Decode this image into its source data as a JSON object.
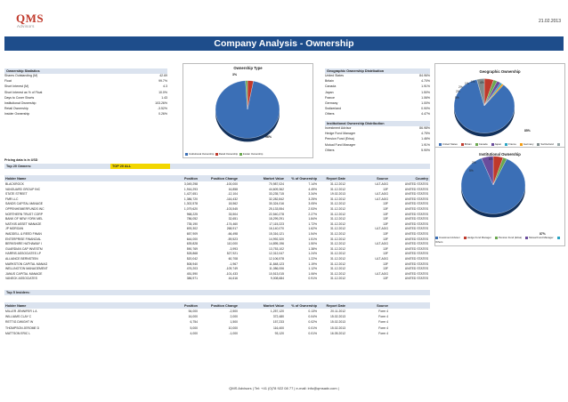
{
  "brand": {
    "logo": "QMS",
    "sub": "Advisors"
  },
  "date": "21.02.2013",
  "title": "Company Analysis - Ownership",
  "stats": {
    "header": "Ownership Statistics",
    "rows": [
      {
        "label": "Shares Outstanding (M)",
        "value": "42.69"
      },
      {
        "label": "Float",
        "value": "99.7%"
      },
      {
        "label": "Short Interest (M)",
        "value": "4.3"
      },
      {
        "label": "Short Interest as % of Float",
        "value": "10.0%"
      },
      {
        "label": "Days to Cover Shorts",
        "value": "1.43"
      },
      {
        "label": "Institutional Ownership",
        "value": "103.26%"
      },
      {
        "label": "Retail Ownership",
        "value": "-3.52%"
      },
      {
        "label": "Insider Ownership",
        "value": "0.26%"
      }
    ]
  },
  "ownership_type": {
    "title": "Ownership Type",
    "labels": [
      "3%",
      "96%"
    ],
    "legend": [
      "Institutional Ownership",
      "Retail Ownership",
      "Insider Ownership"
    ]
  },
  "geo": {
    "header": "Geographic Ownership Distribution",
    "rows": [
      {
        "label": "United States",
        "value": "84.96%"
      },
      {
        "label": "Britain",
        "value": "4.70%"
      },
      {
        "label": "Canada",
        "value": "1.91%"
      },
      {
        "label": "Japan",
        "value": "1.50%"
      },
      {
        "label": "France",
        "value": "1.06%"
      },
      {
        "label": "Germany",
        "value": "1.00%"
      },
      {
        "label": "Switzerland",
        "value": "0.90%"
      },
      {
        "label": "Others",
        "value": "4.47%"
      }
    ]
  },
  "geo_chart": {
    "title": "Geographic Ownership",
    "labels": [
      "85%",
      "5%",
      "2%",
      "2%",
      "1%",
      "1%",
      "4%"
    ],
    "legend": [
      "United States",
      "Britain",
      "Canada",
      "Japan",
      "France",
      "Germany",
      "Switzerland",
      "Others"
    ]
  },
  "inst": {
    "header": "Institutional Ownership Distribution",
    "rows": [
      {
        "label": "Investment Advisor",
        "value": "86.98%"
      },
      {
        "label": "Hedge Fund Manager",
        "value": "4.75%"
      },
      {
        "label": "Pension Fund (Erisa)",
        "value": "1.46%"
      },
      {
        "label": "Mutual Fund Manager",
        "value": "1.91%"
      },
      {
        "label": "Others",
        "value": "5.90%"
      }
    ]
  },
  "inst_chart": {
    "title": "Institutional Ownership",
    "labels": [
      "87%",
      "5%",
      "2%",
      "6%"
    ],
    "legend": [
      "Investment Advisor",
      "Hedge Fund Manager",
      "Pension Fund (Erisa)",
      "Mutual Fund Manager",
      "Others"
    ]
  },
  "pricing_note": "Pricing data is in USD",
  "top_owners": {
    "label": "Top 20 Owners:",
    "selector": "TOP 20 ALL"
  },
  "holders_table": {
    "columns": [
      "Holder Name",
      "Position",
      "Position Change",
      "Market Value",
      "% of Ownership",
      "Report Date",
      "Source",
      "Country"
    ],
    "rows": [
      [
        "BLACKROCK",
        "3,049,298",
        "-100,000",
        "70,987,024",
        "7.14%",
        "31.12.2012",
        "ULT-AGG",
        "UNITED STATES"
      ],
      [
        "VANGUARD GROUP INC",
        "1,916,293",
        "16,858",
        "44,609,362",
        "4.49%",
        "31.12.2012",
        "13F",
        "UNITED STATES"
      ],
      [
        "STATE STREET",
        "1,427,651",
        "-12,104",
        "33,235,715",
        "3.34%",
        "19.02.2013",
        "ULT-AGG",
        "UNITED STATES"
      ],
      [
        "FMR LLC",
        "1,386,720",
        "-116,432",
        "32,282,842",
        "3.25%",
        "31.12.2012",
        "ULT-AGG",
        "UNITED STATES"
      ],
      [
        "SANDS CAPITAL MANAGE",
        "1,302,578",
        "18,562",
        "30,324,016",
        "3.05%",
        "31.12.2012",
        "13F",
        "UNITED STATES"
      ],
      [
        "OPPENHEIMERFUNDS INC",
        "1,079,620",
        "-103,545",
        "25,133,554",
        "2.53%",
        "31.12.2012",
        "13F",
        "UNITED STATES"
      ],
      [
        "NORTHERN TRUST CORP",
        "968,225",
        "33,504",
        "22,540,278",
        "2.27%",
        "31.12.2012",
        "13F",
        "UNITED STATES"
      ],
      [
        "BANK OF NEW YORK MEL",
        "786,052",
        "32,651",
        "18,299,291",
        "1.84%",
        "31.12.2012",
        "13F",
        "UNITED STATES"
      ],
      [
        "NATIXIS ASSET MANAGE",
        "735,190",
        "-174,460",
        "17,115,223",
        "1.72%",
        "31.12.2012",
        "13F",
        "UNITED STATES"
      ],
      [
        "JP MORGAN",
        "693,302",
        "268,917",
        "16,140,070",
        "1.62%",
        "31.12.2012",
        "ULT-AGG",
        "UNITED STATES"
      ],
      [
        "WADDELL & REED FINAN",
        "657,909",
        "-66,498",
        "15,316,121",
        "1.54%",
        "31.12.2012",
        "13F",
        "UNITED STATES"
      ],
      [
        "ENTERPRISE FINANCIAL",
        "644,000",
        "-59,523",
        "14,992,320",
        "1.51%",
        "31.12.2012",
        "13F",
        "UNITED STATES"
      ],
      [
        "BERKSHIRE HATHAWAY I",
        "639,828",
        "110,000",
        "14,895,196",
        "1.50%",
        "31.12.2012",
        "ULT-AGG",
        "UNITED STATES"
      ],
      [
        "GUARDIAN CAP INVESTM",
        "590,769",
        "-3,993",
        "13,753,102",
        "1.38%",
        "31.12.2012",
        "13F",
        "UNITED STATES"
      ],
      [
        "HARRIS ASSOCIATES LP",
        "528,868",
        "527,921",
        "12,312,047",
        "1.24%",
        "31.12.2012",
        "13F",
        "UNITED STATES"
      ],
      [
        "ALLIANCE BERNSTEIN",
        "520,042",
        "60,708",
        "12,106,578",
        "1.22%",
        "31.12.2012",
        "ULT-AGG",
        "UNITED STATES"
      ],
      [
        "MARKSTON CAPITAL MANAG",
        "508,940",
        "-1,967",
        "11,848,123",
        "1.19%",
        "31.12.2012",
        "13F",
        "UNITED STATES"
      ],
      [
        "WELLINGTON MANAGEMENT",
        "476,203",
        "-109,749",
        "11,086,006",
        "1.12%",
        "31.12.2012",
        "13F",
        "UNITED STATES"
      ],
      [
        "JANUS CAPITAL MANAGE",
        "451,590",
        "-101,433",
        "10,513,015",
        "1.06%",
        "31.12.2012",
        "ULT-AGG",
        "UNITED STATES"
      ],
      [
        "VANECK ASSOCIATES",
        "386,971",
        "44,616",
        "9,008,684",
        "0.91%",
        "31.12.2012",
        "13F",
        "UNITED STATES"
      ]
    ]
  },
  "top_insiders": {
    "label": "Top 5 Insiders:"
  },
  "insiders_table": {
    "columns": [
      "Holder Name",
      "Position",
      "Position Change",
      "Market Value",
      "% of Ownership",
      "Report Date",
      "Source"
    ],
    "rows": [
      [
        "MILLER JENNIFER L A",
        "54,000",
        "-2,500",
        "1,257,120",
        "0.13%",
        "20.11.2012",
        "Form 4"
      ],
      [
        "WILLIAMS CLAY C",
        "16,000",
        "2,000",
        "372,480",
        "0.04%",
        "15.02.2013",
        "Form 4"
      ],
      [
        "RETTIG DWIGHT W",
        "6,754",
        "1,500",
        "157,233",
        "0.02%",
        "15.02.2013",
        "Form 4"
      ],
      [
        "THOMPSON JEROME D",
        "5,000",
        "10,000",
        "116,400",
        "0.01%",
        "15.02.2013",
        "Form 4"
      ],
      [
        "MATTSON ERIC L",
        "4,000",
        "-1,000",
        "93,120",
        "0.01%",
        "16.05.2012",
        "Form 4"
      ]
    ]
  },
  "footer": "QMS Advisors | Tel: +41 (0)78 922 08 77 | e-mail: info@qmsadv.com |",
  "colors": {
    "navy": "#1e4d8b",
    "blue": "#3b6fb6",
    "red": "#c0392b",
    "green": "#6aa84f",
    "purple": "#6a4c9c",
    "yellow": "#f2d600",
    "header_bg": "#dbe3ef"
  }
}
